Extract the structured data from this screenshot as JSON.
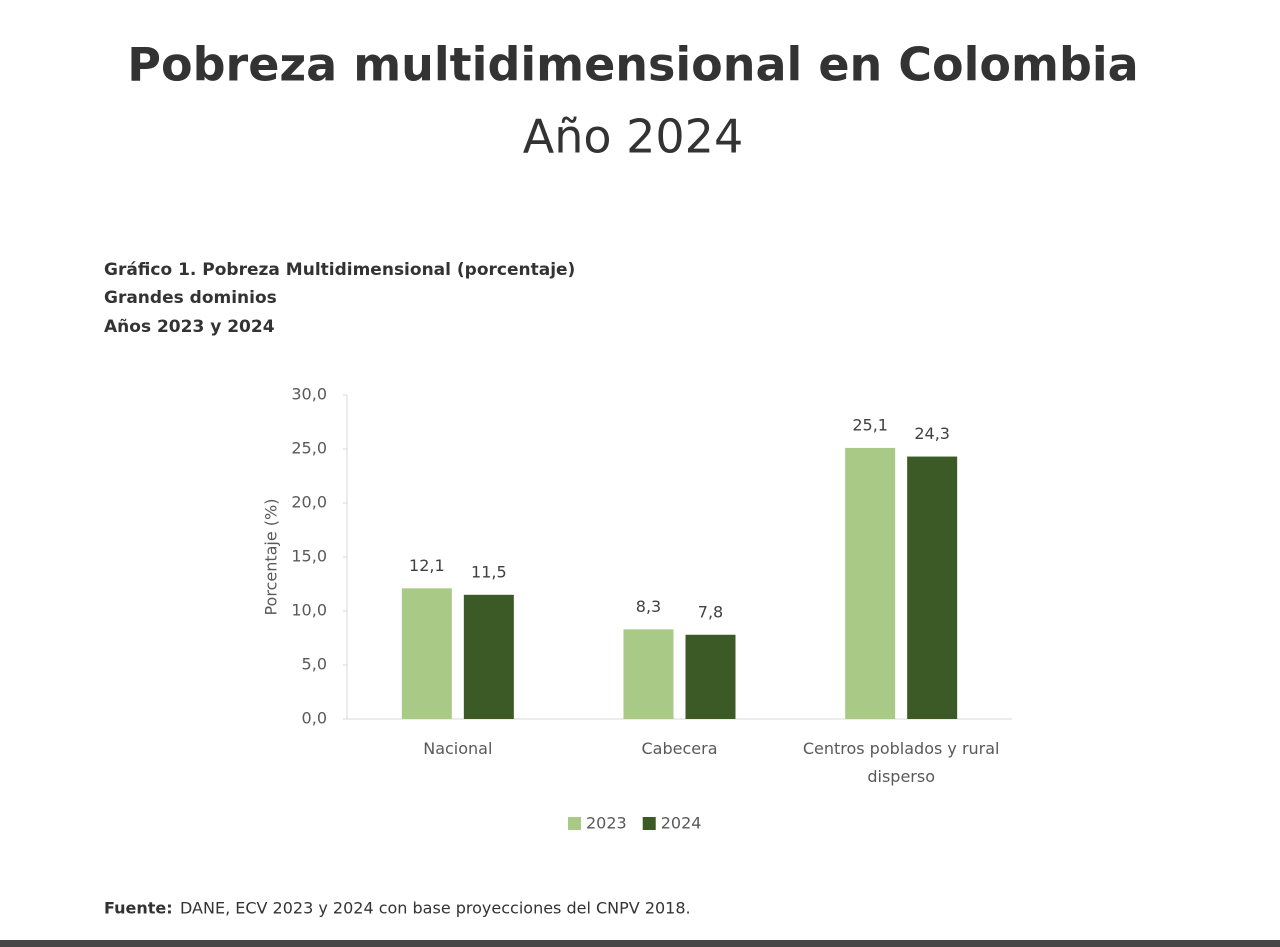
{
  "page": {
    "title": "Pobreza multidimensional en Colombia",
    "subtitle": "Año 2024"
  },
  "chart_data": {
    "type": "bar",
    "title": "Gráfico 1. Pobreza Multidimensional (porcentaje)",
    "subtitle": [
      "Grandes dominios",
      "Años 2023 y 2024"
    ],
    "ylabel": "Porcentaje (%)",
    "categories": [
      "Nacional",
      "Cabecera",
      "Centros poblados y rural disperso"
    ],
    "series": [
      {
        "name": "2023",
        "color": "#a9c986",
        "values": [
          12.1,
          8.3,
          25.1
        ],
        "value_labels": [
          "12,1",
          "8,3",
          "25,1"
        ]
      },
      {
        "name": "2024",
        "color": "#3b5a25",
        "values": [
          11.5,
          7.8,
          24.3
        ],
        "value_labels": [
          "11,5",
          "7,8",
          "24,3"
        ]
      }
    ],
    "ylim": [
      0,
      30
    ],
    "yticks": [
      {
        "value": 0,
        "label": "0,0"
      },
      {
        "value": 5,
        "label": "5,0"
      },
      {
        "value": 10,
        "label": "10,0"
      },
      {
        "value": 15,
        "label": "15,0"
      },
      {
        "value": 20,
        "label": "20,0"
      },
      {
        "value": 25,
        "label": "25,0"
      },
      {
        "value": 30,
        "label": "30,0"
      }
    ],
    "grid": false,
    "legend": "bottom"
  },
  "source": {
    "label": "Fuente:",
    "text": "DANE, ECV 2023 y 2024 con base proyecciones del CNPV 2018."
  }
}
